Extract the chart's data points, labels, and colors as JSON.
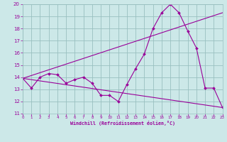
{
  "background_color": "#cce8e8",
  "grid_color": "#99c0c0",
  "line_color": "#990099",
  "xlabel": "Windchill (Refroidissement éolien,°C)",
  "xlim": [
    0,
    23
  ],
  "ylim": [
    11,
    20
  ],
  "xticks": [
    0,
    1,
    2,
    3,
    4,
    5,
    6,
    7,
    8,
    9,
    10,
    11,
    12,
    13,
    14,
    15,
    16,
    17,
    18,
    19,
    20,
    21,
    22,
    23
  ],
  "yticks": [
    11,
    12,
    13,
    14,
    15,
    16,
    17,
    18,
    19,
    20
  ],
  "line1_x": [
    0,
    1,
    2,
    3,
    4,
    5,
    6,
    7,
    8,
    9,
    10,
    11,
    12,
    13,
    14,
    15,
    16,
    17,
    18,
    19,
    20,
    21,
    22,
    23
  ],
  "line1_y": [
    13.9,
    13.1,
    14.0,
    14.3,
    14.2,
    13.5,
    13.8,
    14.0,
    13.5,
    12.5,
    12.5,
    12.0,
    13.4,
    14.7,
    15.9,
    18.0,
    19.3,
    20.0,
    19.3,
    17.8,
    16.4,
    13.1,
    13.1,
    11.5
  ],
  "line2_x": [
    0,
    23
  ],
  "line2_y": [
    13.9,
    11.5
  ],
  "line3_x": [
    0,
    23
  ],
  "line3_y": [
    13.9,
    19.3
  ]
}
